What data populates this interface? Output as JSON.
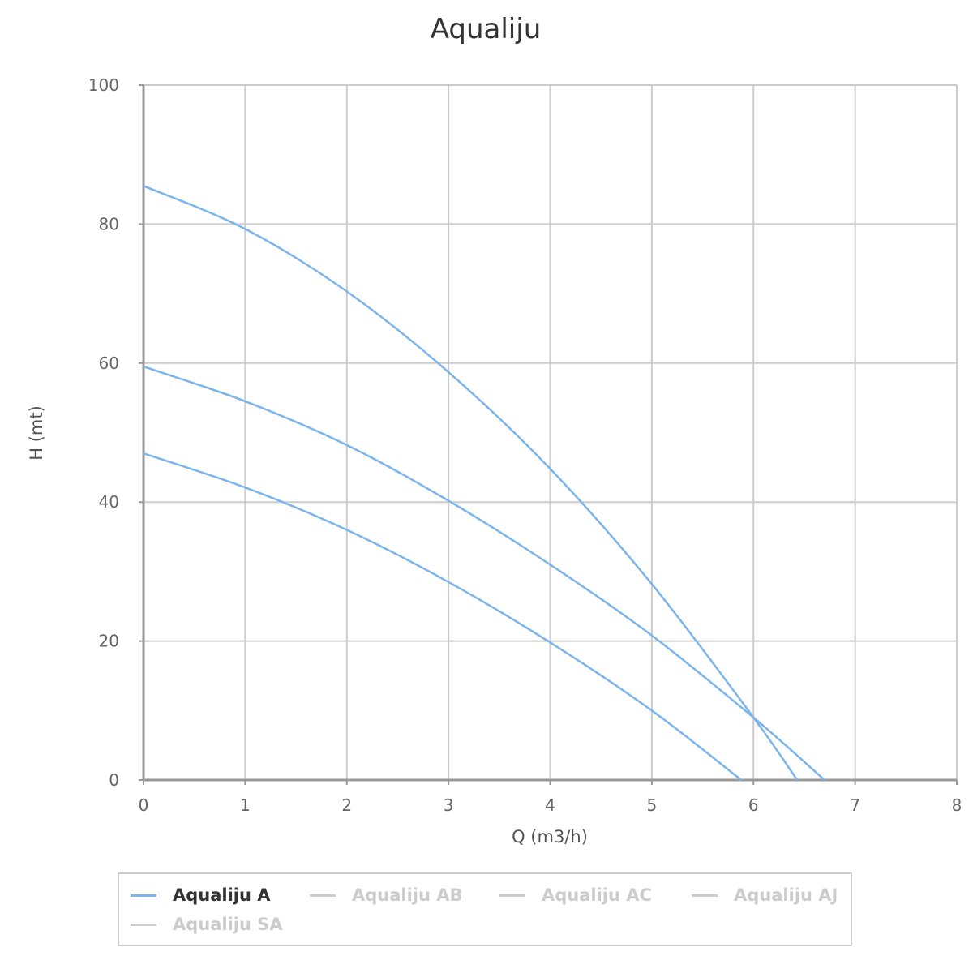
{
  "chart_data": {
    "type": "line",
    "title": "Aqualiju",
    "xlabel": "Q (m3/h)",
    "ylabel": "H (mt)",
    "xlim": [
      0,
      8
    ],
    "ylim": [
      0,
      100
    ],
    "xticks": [
      "0",
      "1",
      "2",
      "3",
      "4",
      "5",
      "6",
      "7",
      "8"
    ],
    "yticks": [
      "0",
      "20",
      "40",
      "60",
      "80",
      "100"
    ],
    "grid": true,
    "legend_position": "bottom",
    "series_color": "#7cb5ec",
    "inactive_color": "#cccccc",
    "series": [
      {
        "x": [
          0,
          1,
          2,
          3,
          4,
          5,
          6,
          6.43
        ],
        "y": [
          85.5,
          79.3,
          70.3,
          58.7,
          44.8,
          28.2,
          9.0,
          0
        ]
      },
      {
        "x": [
          0,
          1,
          2,
          3,
          4,
          5,
          6,
          6.7
        ],
        "y": [
          59.5,
          54.5,
          48.2,
          40.2,
          31.0,
          20.8,
          9.0,
          0
        ]
      },
      {
        "x": [
          0,
          1,
          2,
          3,
          4,
          5,
          5.88
        ],
        "y": [
          47.0,
          42.1,
          36.0,
          28.5,
          19.8,
          10.0,
          0
        ]
      }
    ],
    "legend": [
      {
        "label": "Aqualiju A",
        "active": true
      },
      {
        "label": "Aqualiju AB",
        "active": false
      },
      {
        "label": "Aqualiju AC",
        "active": false
      },
      {
        "label": "Aqualiju AJ",
        "active": false
      },
      {
        "label": "Aqualiju SA",
        "active": false
      }
    ]
  }
}
